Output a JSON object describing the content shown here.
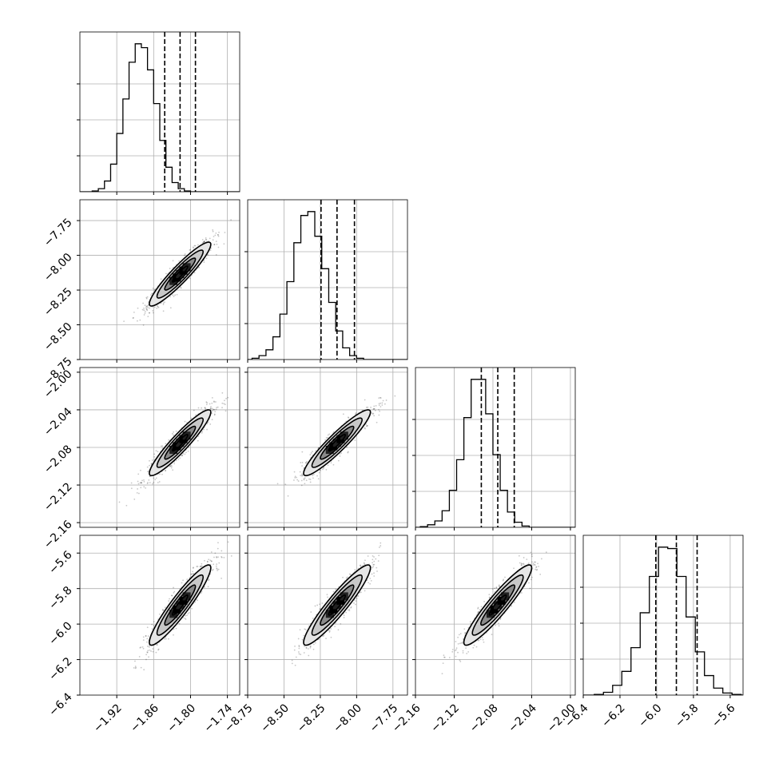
{
  "chart_data": {
    "type": "corner",
    "parameters": 4,
    "axes": [
      {
        "ticks": [
          -1.92,
          -1.86,
          -1.8,
          -1.74
        ],
        "tick_labels": [
          "−1.92",
          "−1.86",
          "−1.80",
          "−1.74"
        ],
        "range": [
          -1.98,
          -1.72
        ]
      },
      {
        "ticks": [
          -8.75,
          -8.5,
          -8.25,
          -8.0,
          -7.75
        ],
        "tick_labels": [
          "−8.75",
          "−8.50",
          "−8.25",
          "−8.00",
          "−7.75"
        ],
        "range": [
          -8.75,
          -7.65
        ]
      },
      {
        "ticks": [
          -2.16,
          -2.12,
          -2.08,
          -2.04,
          -2.0
        ],
        "tick_labels": [
          "−2.16",
          "−2.12",
          "−2.08",
          "−2.04",
          "−2.00"
        ],
        "range": [
          -2.16,
          -1.995
        ]
      },
      {
        "ticks": [
          -6.4,
          -6.2,
          -6.0,
          -5.8,
          -5.6
        ],
        "tick_labels": [
          "−6.4",
          "−6.2",
          "−6.0",
          "−5.8",
          "−5.6"
        ],
        "range": [
          -6.4,
          -5.53
        ]
      }
    ],
    "y_axes": [
      {
        "param": 1,
        "ticks": [
          -7.75,
          -8.0,
          -8.25,
          -8.5,
          -8.75
        ],
        "tick_labels": [
          "−7.75",
          "−8.00",
          "−8.25",
          "−8.50",
          "−8.75"
        ],
        "range": [
          -8.75,
          -7.6
        ]
      },
      {
        "param": 2,
        "ticks": [
          -2.0,
          -2.04,
          -2.08,
          -2.12,
          -2.16
        ],
        "tick_labels": [
          "−2.00",
          "−2.04",
          "−2.08",
          "−2.12",
          "−2.16"
        ],
        "range": [
          -2.165,
          -1.995
        ]
      },
      {
        "param": 3,
        "ticks": [
          -5.6,
          -5.8,
          -6.0,
          -6.2,
          -6.4
        ],
        "tick_labels": [
          "−5.6",
          "−5.8",
          "−6.0",
          "−6.2",
          "−6.4"
        ],
        "range": [
          -6.4,
          -5.5
        ]
      }
    ],
    "marginals": [
      {
        "param": 0,
        "edges_start": -1.96,
        "bin_width": 0.01,
        "counts": [
          1,
          4,
          14,
          36,
          76,
          121,
          169,
          193,
          188,
          159,
          115,
          67,
          32,
          12,
          4,
          1
        ],
        "quantiles": [
          -1.842,
          -1.817,
          -1.792
        ]
      },
      {
        "param": 1,
        "edges_start": -8.72,
        "bin_width": 0.048,
        "counts": [
          2,
          6,
          15,
          35,
          70,
          120,
          180,
          222,
          228,
          190,
          140,
          88,
          44,
          18,
          6,
          2
        ],
        "quantiles": [
          -8.245,
          -8.135,
          -8.015
        ]
      },
      {
        "param": 2,
        "edges_start": -2.155,
        "bin_width": 0.0075,
        "counts": [
          1,
          4,
          10,
          26,
          58,
          106,
          172,
          232,
          232,
          178,
          114,
          58,
          24,
          8,
          2
        ],
        "quantiles": [
          -2.092,
          -2.075,
          -2.058
        ]
      },
      {
        "param": 3,
        "edges_start": -6.34,
        "bin_width": 0.05,
        "counts": [
          1,
          4,
          14,
          34,
          68,
          118,
          170,
          212,
          210,
          170,
          112,
          62,
          28,
          10,
          3,
          1
        ],
        "quantiles": [
          -6.005,
          -5.893,
          -5.78
        ]
      }
    ],
    "joint": {
      "means": [
        -1.817,
        -8.135,
        -2.075,
        -5.893
      ],
      "sigmas": [
        0.025,
        0.115,
        0.0175,
        0.113
      ],
      "correlation": 0.93,
      "contour_levels_sigma": [
        0.5,
        1.0,
        1.5,
        2.0
      ]
    },
    "grid": true,
    "title": "",
    "axis_labels": []
  }
}
